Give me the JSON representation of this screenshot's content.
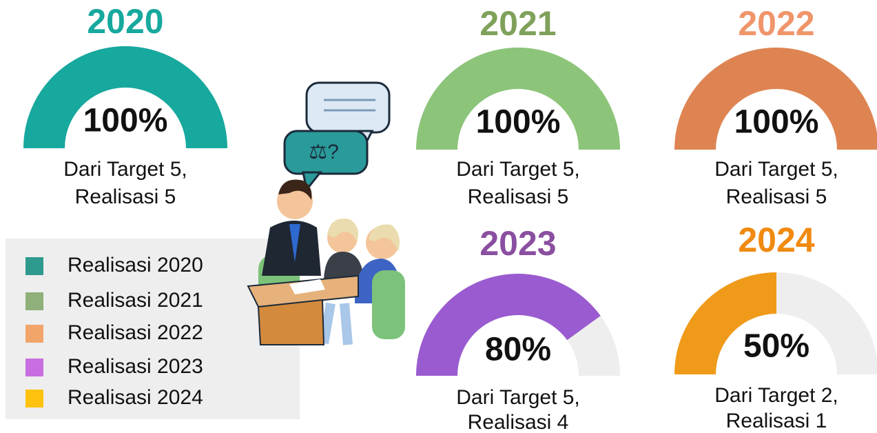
{
  "chart_data": [
    {
      "type": "gauge",
      "title": "2020",
      "title_color": "#17a89e",
      "color": "#17a89e",
      "values": [
        100
      ],
      "value_labels": [
        "100%"
      ],
      "ylim": [
        0,
        100
      ],
      "caption": [
        "Dari Target 5,",
        "Realisasi 5"
      ]
    },
    {
      "type": "gauge",
      "title": "2021",
      "title_color": "#7fa15a",
      "color": "#8cc47a",
      "values": [
        100
      ],
      "value_labels": [
        "100%"
      ],
      "ylim": [
        0,
        100
      ],
      "caption": [
        "Dari Target 5,",
        "Realisasi 5"
      ]
    },
    {
      "type": "gauge",
      "title": "2022",
      "title_color": "#f0956a",
      "color": "#de8452",
      "values": [
        100
      ],
      "value_labels": [
        "100%"
      ],
      "ylim": [
        0,
        100
      ],
      "caption": [
        "Dari Target 5,",
        "Realisasi 5"
      ]
    },
    {
      "type": "gauge",
      "title": "2023",
      "title_color": "#8a4fa0",
      "color": "#9a5bd0",
      "values": [
        80
      ],
      "value_labels": [
        "80%"
      ],
      "ylim": [
        0,
        100
      ],
      "caption": [
        "Dari Target 5,",
        "Realisasi 4"
      ]
    },
    {
      "type": "gauge",
      "title": "2024",
      "title_color": "#f08a10",
      "color": "#f09a1a",
      "values": [
        50
      ],
      "value_labels": [
        "50%"
      ],
      "ylim": [
        0,
        100
      ],
      "caption": [
        "Dari Target 2,",
        "Realisasi 1"
      ]
    }
  ],
  "legend": {
    "entries": [
      {
        "label": "Realisasi 2020",
        "color": "#2e9a8e"
      },
      {
        "label": "Realisasi 2021",
        "color": "#8fb07a"
      },
      {
        "label": "Realisasi 2022",
        "color": "#f2a56a"
      },
      {
        "label": "Realisasi 2023",
        "color": "#c96ee0"
      },
      {
        "label": "Realisasi 2024",
        "color": "#ffc20e"
      }
    ]
  }
}
